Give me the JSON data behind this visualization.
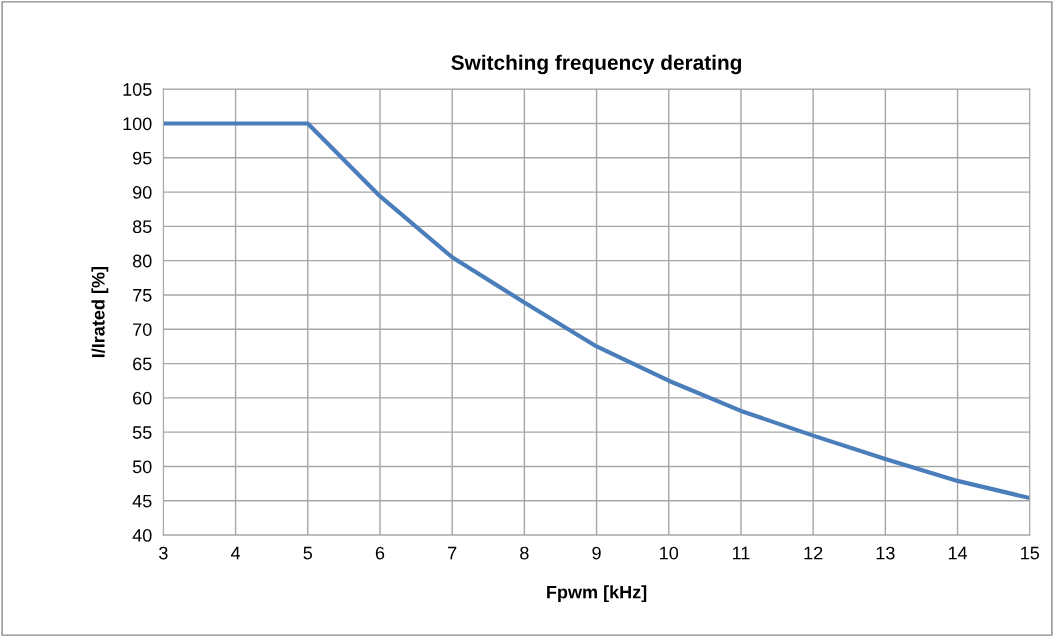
{
  "chart_data": {
    "type": "line",
    "title": "Switching frequency derating",
    "xlabel": "Fpwm [kHz]",
    "ylabel": "I/Irated [%]",
    "x": [
      3,
      4,
      5,
      6,
      7,
      8,
      9,
      10,
      11,
      12,
      13,
      14,
      15
    ],
    "series": [
      {
        "color": "#4a7ebb",
        "values": [
          100,
          100,
          100,
          89.4,
          80.5,
          73.9,
          67.5,
          62.5,
          58.1,
          54.5,
          51.1,
          47.9,
          45.4
        ]
      }
    ],
    "xlim": [
      3,
      15
    ],
    "xticks": [
      3,
      4,
      5,
      6,
      7,
      8,
      9,
      10,
      11,
      12,
      13,
      14,
      15
    ],
    "ylim": [
      40,
      105
    ],
    "yticks": [
      40,
      45,
      50,
      55,
      60,
      65,
      70,
      75,
      80,
      85,
      90,
      95,
      100,
      105
    ],
    "grid": true,
    "marker": "none",
    "line_style": "solid"
  }
}
